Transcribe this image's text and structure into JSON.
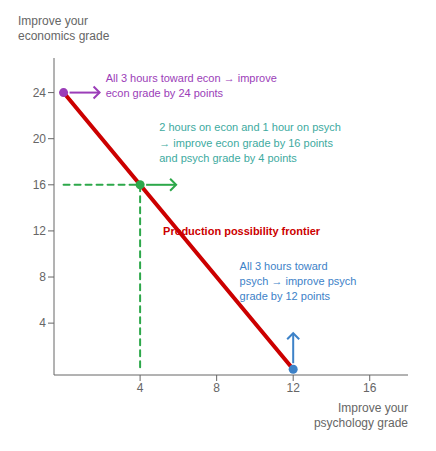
{
  "chart_data": {
    "type": "line",
    "xlabel": "Improve your\npsychology grade",
    "ylabel": "Improve your\neconomics grade",
    "xlim": [
      -0.5,
      18
    ],
    "ylim": [
      -0.5,
      27
    ],
    "xticks": [
      4,
      8,
      12,
      16
    ],
    "yticks": [
      4,
      8,
      12,
      16,
      20,
      24
    ],
    "series": [
      {
        "type": "line",
        "color": "#cc0000",
        "x": [
          0,
          12
        ],
        "y": [
          24,
          0
        ]
      },
      {
        "type": "line",
        "line_style": "dashed",
        "color": "#2da84a",
        "x": [
          0,
          4,
          4
        ],
        "y": [
          16,
          16,
          0
        ]
      },
      {
        "type": "scatter",
        "colors": [
          "#9b3db8",
          "#2da84a",
          "#3d82c8"
        ],
        "x": [
          0,
          4,
          12
        ],
        "y": [
          24,
          16,
          0
        ]
      }
    ],
    "annotations": [
      {
        "text": "Production possibility frontier",
        "color": "#cc0000",
        "x": 5.2,
        "y": 12.5
      },
      {
        "text": "All 3 hours toward econ → improve\necon grade by 24 points",
        "color": "#9b3db8",
        "x": 2.2,
        "y": 25.8
      },
      {
        "text": "2 hours on econ and 1 hour on psych\n→ improve econ grade by 16 points\nand psych grade by 4 points",
        "color": "#3daaa0",
        "x": 5.0,
        "y": 21.5
      },
      {
        "text": "All 3 hours toward\npsych → improve psych\ngrade by 12 points",
        "color": "#3d82c8",
        "x": 9.2,
        "y": 9.5
      }
    ]
  }
}
